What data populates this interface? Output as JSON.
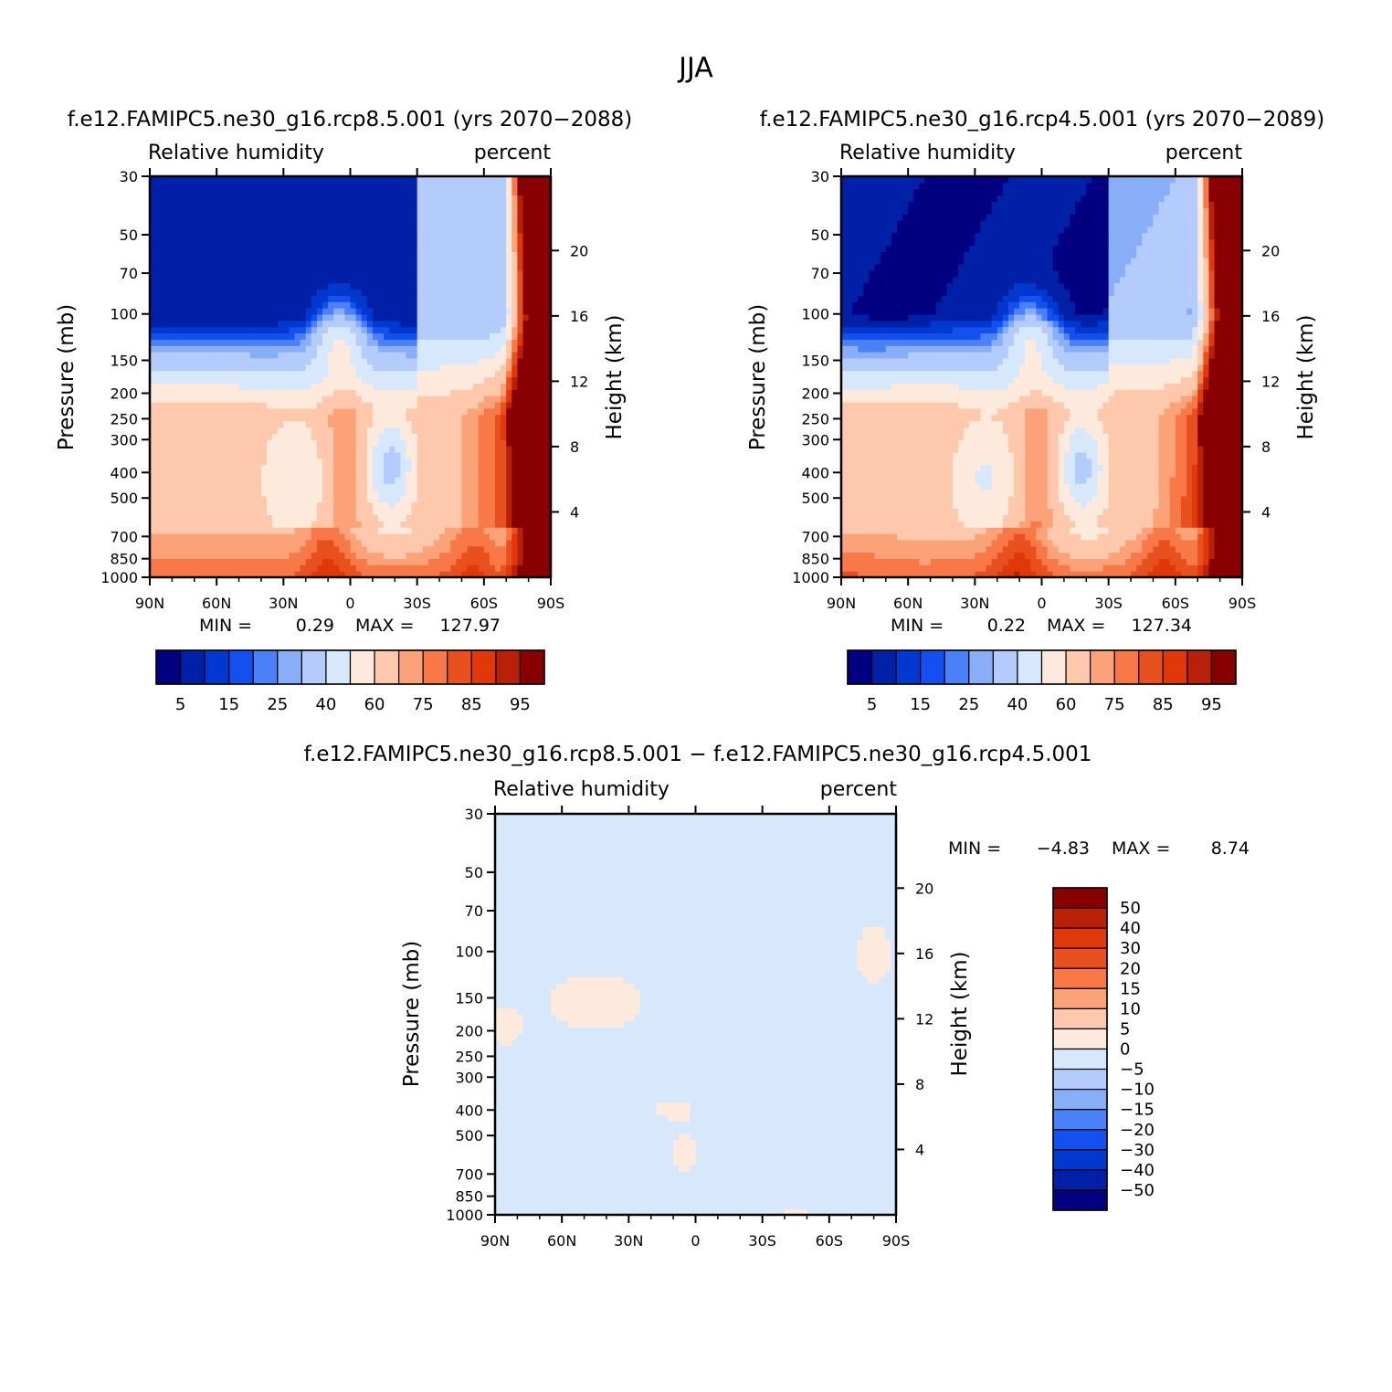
{
  "figure_title": "JJA",
  "colors": {
    "rh_levels": [
      "#000080",
      "#0020a8",
      "#0038d0",
      "#1450f0",
      "#4a80f8",
      "#88aef8",
      "#b4ccfc",
      "#d8e8fc",
      "#feeadc",
      "#fec8ac",
      "#fca278",
      "#f87848",
      "#e85020",
      "#e03808",
      "#b82008",
      "#880000"
    ],
    "diff_levels": [
      "#000080",
      "#0020a8",
      "#0038d0",
      "#1450f0",
      "#4a80f8",
      "#88aef8",
      "#b4ccfc",
      "#d8e8fc",
      "#feeadc",
      "#fec8ac",
      "#fca278",
      "#f87848",
      "#e85020",
      "#e03808",
      "#b82008",
      "#880000"
    ]
  },
  "chart_data": [
    {
      "type": "heatmap",
      "title": "f.e12.FAMIPC5.ne30_g16.rcp8.5.001 (yrs 2070-2088)",
      "left_label": "Relative humidity",
      "right_label": "percent",
      "xlabel": "",
      "ylabel": "Pressure (mb)",
      "y2label": "Height (km)",
      "x_ticks": [
        "90N",
        "60N",
        "30N",
        "0",
        "30S",
        "60S",
        "90S"
      ],
      "y_ticks": [
        30,
        50,
        70,
        100,
        150,
        200,
        250,
        300,
        400,
        500,
        700,
        850,
        1000
      ],
      "y2_ticks": [
        20,
        16,
        12,
        8,
        4
      ],
      "min_label": "MIN =",
      "min_value": "0.29",
      "max_label": "MAX =",
      "max_value": "127.97",
      "colorbar_labels": [
        "5",
        "15",
        "25",
        "40",
        "60",
        "75",
        "85",
        "95"
      ],
      "variant": "rcp85"
    },
    {
      "type": "heatmap",
      "title": "f.e12.FAMIPC5.ne30_g16.rcp4.5.001 (yrs 2070-2089)",
      "left_label": "Relative humidity",
      "right_label": "percent",
      "xlabel": "",
      "ylabel": "Pressure (mb)",
      "y2label": "Height (km)",
      "x_ticks": [
        "90N",
        "60N",
        "30N",
        "0",
        "30S",
        "60S",
        "90S"
      ],
      "y_ticks": [
        30,
        50,
        70,
        100,
        150,
        200,
        250,
        300,
        400,
        500,
        700,
        850,
        1000
      ],
      "y2_ticks": [
        20,
        16,
        12,
        8,
        4
      ],
      "min_label": "MIN =",
      "min_value": "0.22",
      "max_label": "MAX =",
      "max_value": "127.34",
      "colorbar_labels": [
        "5",
        "15",
        "25",
        "40",
        "60",
        "75",
        "85",
        "95"
      ],
      "variant": "rcp45"
    },
    {
      "type": "heatmap",
      "title": "f.e12.FAMIPC5.ne30_g16.rcp8.5.001 - f.e12.FAMIPC5.ne30_g16.rcp4.5.001",
      "left_label": "Relative humidity",
      "right_label": "percent",
      "xlabel": "",
      "ylabel": "Pressure (mb)",
      "y2label": "Height (km)",
      "x_ticks": [
        "90N",
        "60N",
        "30N",
        "0",
        "30S",
        "60S",
        "90S"
      ],
      "y_ticks": [
        30,
        50,
        70,
        100,
        150,
        200,
        250,
        300,
        400,
        500,
        700,
        850,
        1000
      ],
      "y2_ticks": [
        20,
        16,
        12,
        8,
        4
      ],
      "min_label": "MIN =",
      "min_value": "-4.83",
      "max_label": "MAX =",
      "max_value": "8.74",
      "colorbar_labels": [
        "50",
        "40",
        "30",
        "20",
        "15",
        "10",
        "5",
        "0",
        "-5",
        "-10",
        "-15",
        "-20",
        "-30",
        "-40",
        "-50"
      ],
      "variant": "diff"
    }
  ]
}
